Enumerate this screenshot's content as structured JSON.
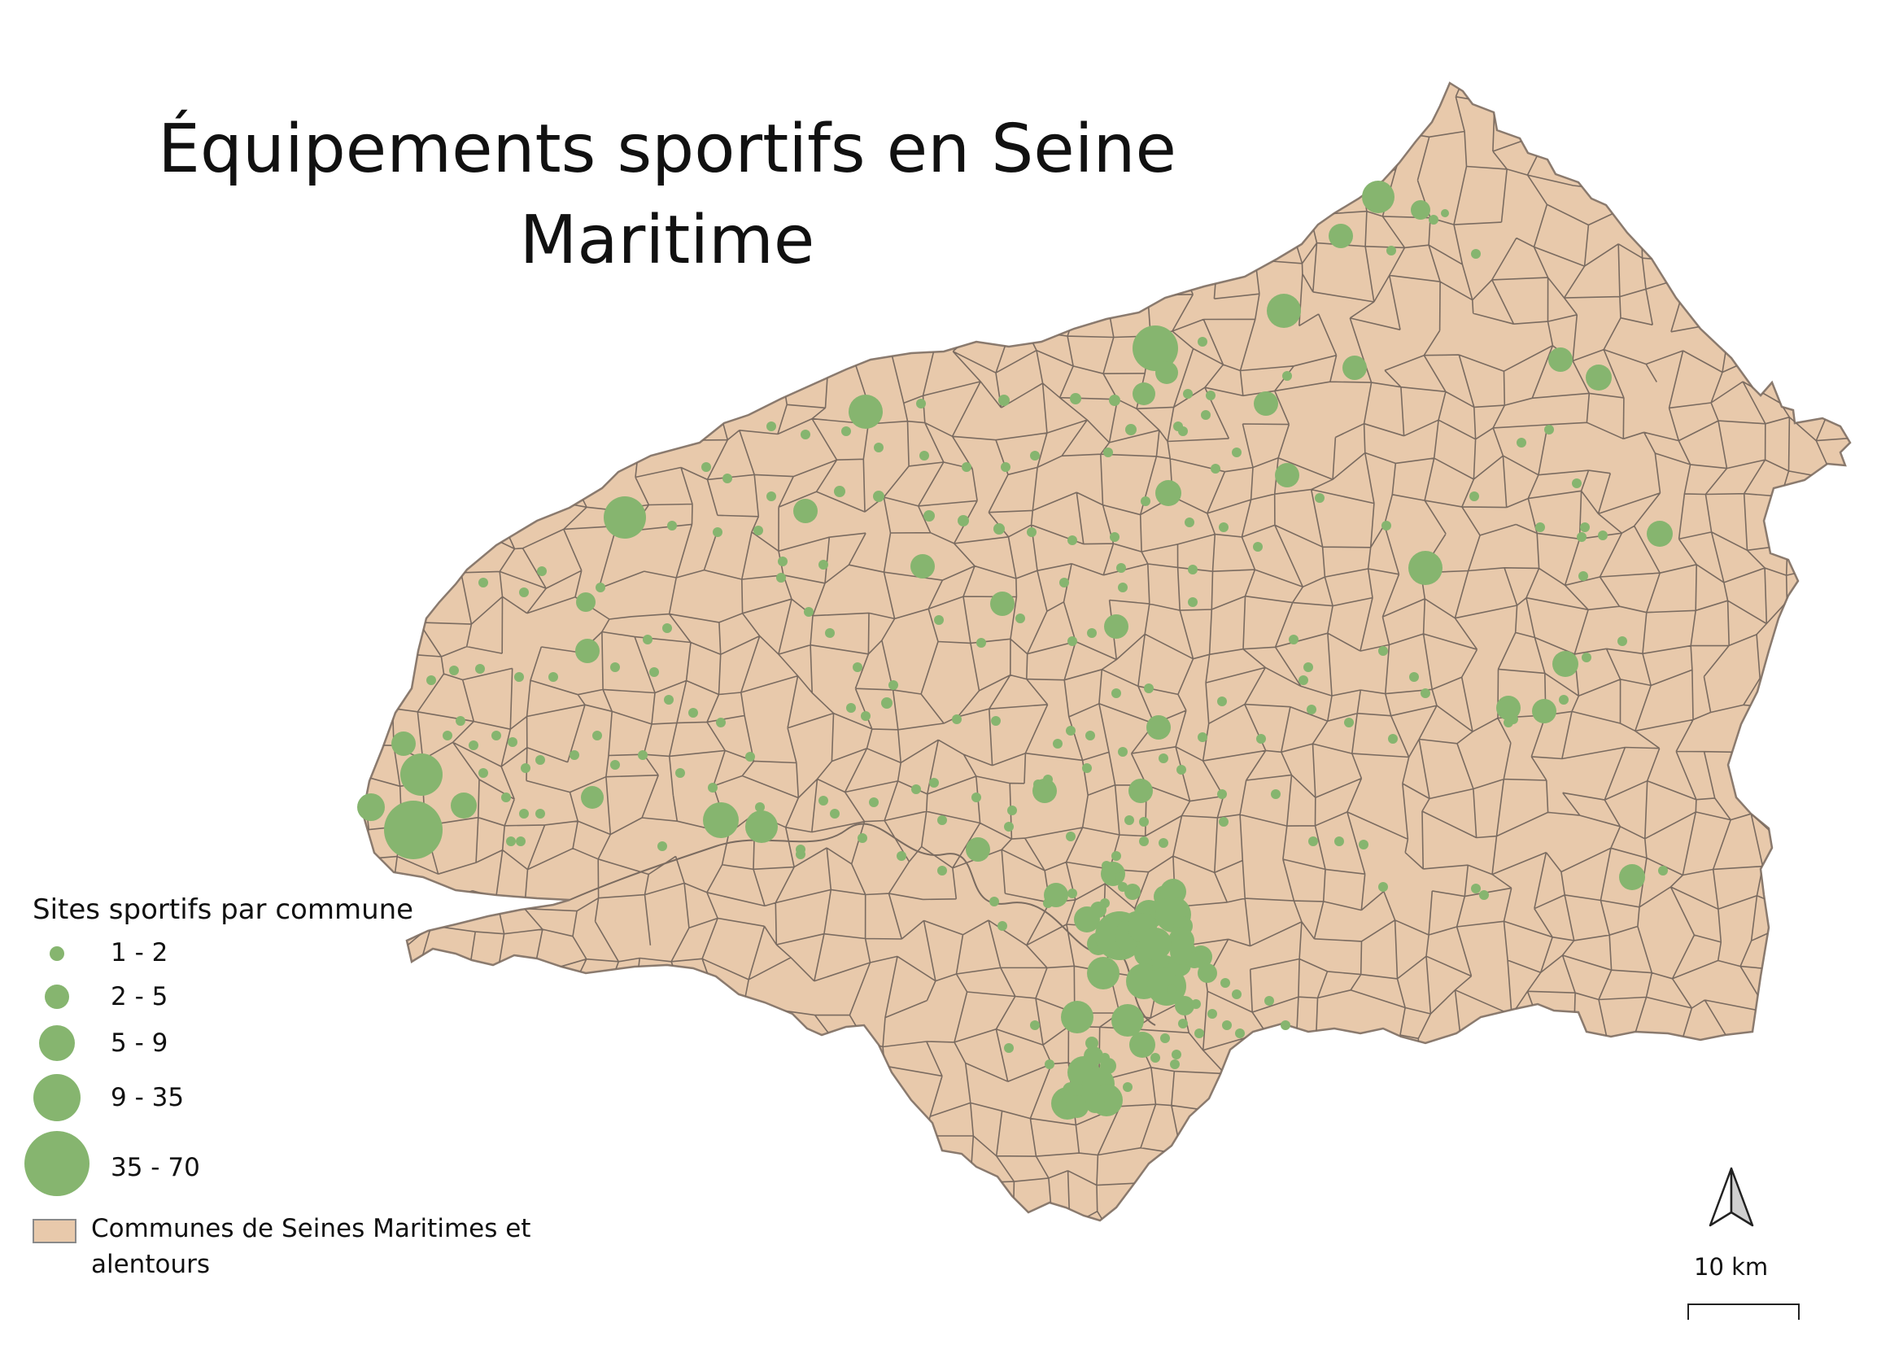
{
  "title": "Équipements sportifs en Seine Maritime",
  "legend": {
    "heading": "Sites sportifs par commune",
    "classes": [
      {
        "label": "1 - 2"
      },
      {
        "label": "2 - 5"
      },
      {
        "label": "5 - 9"
      },
      {
        "label": "9 - 35"
      },
      {
        "label": "35 - 70"
      }
    ],
    "area_label": "Communes de Seines Maritimes et alentours"
  },
  "scale": {
    "label": "10 km"
  },
  "north_arrow": {
    "icon": "north-arrow-icon"
  },
  "colors": {
    "communes_fill": "#e8c9ab",
    "communes_stroke": "#7a6b60",
    "symbol_fill": "#86b56f"
  }
}
